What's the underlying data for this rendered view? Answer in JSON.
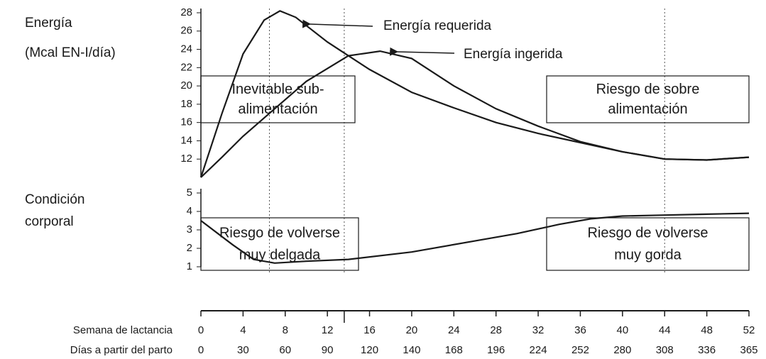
{
  "chart_data": [
    {
      "type": "line",
      "y_label": [
        "Energía",
        "(Mcal EN-I/día)"
      ],
      "xlim": [
        0,
        52
      ],
      "ylim": [
        10,
        28
      ],
      "yticks": [
        12,
        14,
        16,
        18,
        20,
        22,
        24,
        26,
        28
      ],
      "series": [
        {
          "name": "Energía requerida",
          "color": "#1a1a1a",
          "x": [
            0,
            2,
            4,
            6,
            7.5,
            9,
            12,
            14,
            16,
            20,
            24,
            28,
            32,
            36,
            40,
            44,
            48,
            52
          ],
          "values": [
            10,
            17,
            23.5,
            27.2,
            28.2,
            27.5,
            24.8,
            23.3,
            21.8,
            19.3,
            17.6,
            16,
            14.8,
            13.8,
            12.8,
            12,
            11.9,
            12.2
          ]
        },
        {
          "name": "Energía ingerida",
          "color": "#1a1a1a",
          "x": [
            0,
            2,
            4,
            7,
            10,
            14,
            17,
            20,
            24,
            28,
            32,
            36,
            40,
            44,
            48,
            52
          ],
          "values": [
            10,
            12.2,
            14.5,
            17.5,
            20.5,
            23.3,
            23.8,
            23,
            20,
            17.5,
            15.6,
            13.9,
            12.8,
            12,
            11.9,
            12.2
          ]
        }
      ],
      "annotations": [
        {
          "text": [
            "Inevitable sub-",
            "alimentación"
          ]
        },
        {
          "text": [
            "Riesgo de sobre",
            "alimentación"
          ]
        }
      ],
      "vlines": [
        6.5,
        13.6,
        44
      ]
    },
    {
      "type": "line",
      "y_label": [
        "Condición",
        "corporal"
      ],
      "xlim": [
        0,
        52
      ],
      "ylim": [
        1,
        5
      ],
      "yticks": [
        1,
        2,
        3,
        4,
        5
      ],
      "series": [
        {
          "color": "#1a1a1a",
          "x": [
            0,
            3,
            5,
            7,
            10,
            14,
            20,
            26,
            30,
            34,
            37,
            40,
            44,
            48,
            52
          ],
          "values": [
            3.5,
            2.2,
            1.4,
            1.2,
            1.3,
            1.4,
            1.8,
            2.4,
            2.8,
            3.3,
            3.6,
            3.75,
            3.8,
            3.85,
            3.9
          ]
        }
      ],
      "annotations": [
        {
          "text": [
            "Riesgo de volverse",
            "muy delgada"
          ]
        },
        {
          "text": [
            "Riesgo de volverse",
            "muy gorda"
          ]
        }
      ]
    }
  ],
  "x_axis": {
    "xlim": [
      0,
      52
    ],
    "xlabel": "Semana de lactancia",
    "xticks": [
      0,
      4,
      8,
      12,
      16,
      20,
      24,
      28,
      32,
      36,
      40,
      44,
      48,
      52
    ],
    "days_label": "Días a partir del parto",
    "days": [
      0,
      30,
      60,
      90,
      120,
      140,
      168,
      196,
      224,
      252,
      280,
      308,
      336,
      365
    ]
  }
}
